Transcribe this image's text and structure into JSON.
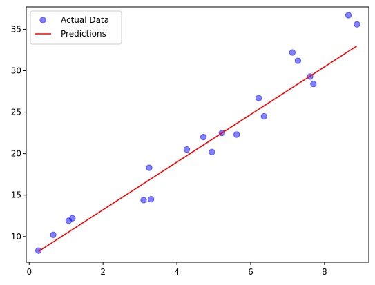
{
  "chart_data": {
    "type": "scatter",
    "title": "",
    "xlabel": "",
    "ylabel": "",
    "xlim": [
      -0.08,
      9.2
    ],
    "ylim": [
      6.9,
      37.7
    ],
    "xticks": [
      0,
      2,
      4,
      6,
      8
    ],
    "yticks": [
      10,
      15,
      20,
      25,
      30,
      35
    ],
    "grid": false,
    "legend": {
      "placement": "top-left",
      "entries": [
        {
          "label": "Actual Data",
          "kind": "marker",
          "color": "#0000ff"
        },
        {
          "label": "Predictions",
          "kind": "line",
          "color": "#ff0000"
        }
      ]
    },
    "series": [
      {
        "name": "Actual Data",
        "kind": "scatter",
        "color": "#0000ff",
        "alpha": 0.5,
        "x": [
          0.25,
          0.65,
          1.07,
          1.17,
          3.1,
          3.25,
          3.3,
          4.27,
          4.72,
          4.95,
          5.22,
          5.62,
          6.22,
          6.36,
          7.13,
          7.28,
          7.61,
          7.7,
          8.65,
          8.88
        ],
        "y": [
          8.3,
          10.2,
          11.9,
          12.2,
          14.4,
          18.3,
          14.5,
          20.5,
          22.0,
          20.2,
          22.5,
          22.3,
          26.7,
          24.5,
          32.2,
          31.2,
          29.3,
          28.4,
          36.7,
          35.6
        ]
      },
      {
        "name": "Predictions",
        "kind": "line",
        "color": "#ff0000",
        "x": [
          0.25,
          8.88
        ],
        "y": [
          8.2,
          33.0
        ]
      }
    ]
  }
}
